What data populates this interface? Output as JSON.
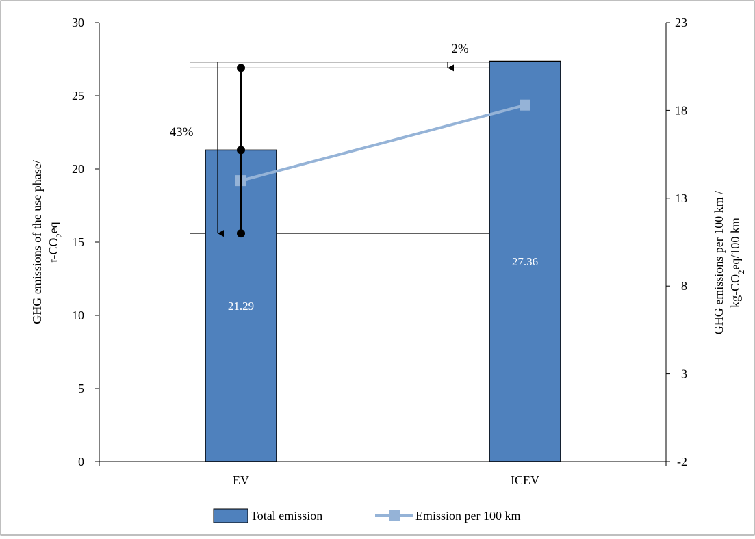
{
  "chart_data": {
    "type": "bar",
    "categories": [
      "EV",
      "ICEV"
    ],
    "series": [
      {
        "name": "Total emission",
        "kind": "bar",
        "axis": "left",
        "color": "#4f81bd",
        "values": [
          21.29,
          27.36
        ],
        "value_labels": [
          "21.29",
          "27.36"
        ]
      },
      {
        "name": "Emission per 100 km",
        "kind": "line",
        "axis": "right",
        "color": "#95b3d7",
        "marker": "square",
        "values": [
          14.0,
          18.3
        ]
      }
    ],
    "error_range": {
      "category": "EV",
      "values": [
        15.6,
        21.29,
        26.9
      ]
    },
    "annotations": [
      {
        "text": "43%",
        "from": 27.3,
        "to": 15.6,
        "axis": "left",
        "category": "EV"
      },
      {
        "text": "2%",
        "from": 27.3,
        "to": 26.9,
        "axis": "left",
        "category": "between"
      }
    ],
    "reference_lines": [
      27.3,
      26.9,
      15.6
    ],
    "y_left": {
      "label_line1": "GHG emissions of the use phase/",
      "label_line2": "t-CO2eq",
      "min": 0,
      "max": 30,
      "ticks": [
        0,
        5,
        10,
        15,
        20,
        25,
        30
      ]
    },
    "y_right": {
      "label_line1": "GHG emissions per 100 km /",
      "label_line2": "kg-CO2eq/100 km",
      "min": -2,
      "max": 23,
      "ticks": [
        -2,
        3,
        8,
        13,
        18,
        23
      ]
    },
    "legend": {
      "position": "bottom",
      "items": [
        "Total emission",
        "Emission per 100 km"
      ]
    },
    "grid": false
  }
}
